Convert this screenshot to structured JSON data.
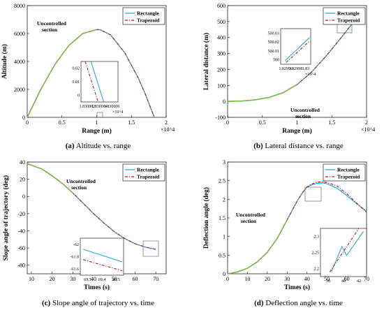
{
  "legend": {
    "rectangle": "Rectangle",
    "trapezoid": "Trapezoid"
  },
  "colors": {
    "rectangle": "#2aa7e2",
    "trapezoid": "#a81b2e",
    "uncontrolled": "#7ab648",
    "axes": "#000000"
  },
  "annotation": {
    "uncontrolled_line1": "Uncontrolled",
    "uncontrolled_line2": "section"
  },
  "captions": {
    "a": {
      "letter": "(a)",
      "text": " Altitude vs. range"
    },
    "b": {
      "letter": "(b)",
      "text": " Lateral distance vs. range"
    },
    "c": {
      "letter": "(c)",
      "text": " Slope angle of trajectory vs. time"
    },
    "d": {
      "letter": "(d)",
      "text": " Deflection angle vs. time"
    }
  },
  "chart_data": [
    {
      "id": "a",
      "type": "line",
      "xlabel": "Range (m)",
      "ylabel": "Altitude (m)",
      "xlim": [
        0,
        20000
      ],
      "ylim": [
        0,
        8000
      ],
      "xticks": [
        "0",
        "0.5",
        "1",
        "1.5",
        "2"
      ],
      "yticks": [
        "0",
        "2000",
        "4000",
        "6000",
        "8000"
      ],
      "x_multiplier": "×10^4",
      "legend_position": "top-right",
      "series": [
        {
          "name": "Rectangle",
          "x": [
            0,
            2000,
            4000,
            6000,
            8000,
            10000,
            10500,
            12000,
            14000,
            16000,
            17000,
            18000,
            18300
          ],
          "y": [
            0,
            2050,
            3800,
            5150,
            6000,
            6280,
            6270,
            5900,
            4650,
            2800,
            1650,
            380,
            0
          ]
        },
        {
          "name": "Trapezoid",
          "x": [
            0,
            2000,
            4000,
            6000,
            8000,
            10000,
            10500,
            12000,
            14000,
            16000,
            17000,
            18000,
            18300
          ],
          "y": [
            0,
            2050,
            3800,
            5150,
            6000,
            6280,
            6270,
            5900,
            4650,
            2800,
            1650,
            380,
            0
          ]
        }
      ],
      "inset": {
        "xticks": [
          "1.830002",
          "1.830004",
          "1.830006"
        ],
        "yticks": [
          "0",
          "0.01",
          "0.02"
        ],
        "x_multiplier": "×10^4",
        "xlim": [
          18300.018,
          18300.07
        ],
        "ylim": [
          0,
          0.028
        ],
        "series": [
          {
            "name": "Rectangle",
            "x": [
              18300.032,
              18300.05
            ],
            "y": [
              0.028,
              0
            ]
          },
          {
            "name": "Trapezoid",
            "x": [
              18300.024,
              18300.042
            ],
            "y": [
              0.028,
              0
            ]
          }
        ]
      }
    },
    {
      "id": "b",
      "type": "line",
      "xlabel": "Range (m)",
      "ylabel": "Lateral distance (m)",
      "xlim": [
        0,
        20000
      ],
      "ylim": [
        -100,
        600
      ],
      "xticks": [
        "0",
        "0.5",
        "1",
        "1.5",
        "2"
      ],
      "yticks": [
        "-100",
        "0",
        "100",
        "200",
        "300",
        "400",
        "500",
        "600"
      ],
      "x_multiplier": "×10^4",
      "legend_position": "top-right",
      "series": [
        {
          "name": "Rectangle",
          "x": [
            0,
            2000,
            4000,
            6000,
            8000,
            10000,
            12000,
            14000,
            16000,
            18000
          ],
          "y": [
            0,
            2,
            10,
            25,
            55,
            105,
            180,
            275,
            380,
            490
          ]
        },
        {
          "name": "Trapezoid",
          "x": [
            0,
            2000,
            4000,
            6000,
            8000,
            10000,
            12000,
            14000,
            16000,
            18000
          ],
          "y": [
            0,
            2,
            10,
            25,
            55,
            105,
            180,
            275,
            380,
            490
          ]
        }
      ],
      "inset": {
        "xticks": [
          "1.82996",
          "1.82998",
          "1.83"
        ],
        "yticks": [
          "500",
          "500.01",
          "500.02",
          "500.03"
        ],
        "x_multiplier": "×10^4",
        "xlim": [
          18299.5,
          18300.05
        ],
        "ylim": [
          499.995,
          500.035
        ],
        "series": [
          {
            "name": "Rectangle",
            "x": [
              18299.58,
              18300.03
            ],
            "y": [
              499.999,
              500.025
            ]
          },
          {
            "name": "Trapezoid",
            "x": [
              18299.6,
              18300.03
            ],
            "y": [
              499.997,
              500.021
            ]
          }
        ]
      }
    },
    {
      "id": "c",
      "type": "line",
      "xlabel": "Times (s)",
      "ylabel": "Slope angle of trajectory (deg)",
      "xlim": [
        8,
        75
      ],
      "ylim": [
        -90,
        40
      ],
      "xticks": [
        "10",
        "20",
        "30",
        "40",
        "50",
        "60",
        "70"
      ],
      "yticks": [
        "-80",
        "-60",
        "-40",
        "-20",
        "0",
        "20",
        "40"
      ],
      "legend_position": "top-right",
      "series": [
        {
          "name": "Rectangle",
          "x": [
            8,
            15,
            20,
            25,
            30,
            35,
            40,
            45,
            50,
            55,
            60,
            65,
            70
          ],
          "y": [
            38,
            32,
            24,
            15,
            4,
            -8,
            -20,
            -31,
            -41,
            -49,
            -55,
            -59,
            -61.5
          ]
        },
        {
          "name": "Trapezoid",
          "x": [
            8,
            15,
            20,
            25,
            30,
            35,
            40,
            45,
            50,
            55,
            60,
            65,
            70
          ],
          "y": [
            38,
            32,
            24,
            15,
            4,
            -8,
            -20,
            -31,
            -41,
            -49,
            -55,
            -59,
            -61.6
          ]
        }
      ],
      "inset": {
        "xticks": [
          "69.3",
          "69.4",
          "69.5"
        ],
        "yticks": [
          "-61.6",
          "-61.8",
          "-62"
        ],
        "xlim": [
          69.28,
          69.58
        ],
        "ylim": [
          -62.05,
          -61.55
        ],
        "series": [
          {
            "name": "Rectangle",
            "x": [
              69.3,
              69.57
            ],
            "y": [
              -61.7,
              -61.87
            ]
          },
          {
            "name": "Trapezoid",
            "x": [
              69.3,
              69.57
            ],
            "y": [
              -61.84,
              -61.99
            ]
          }
        ]
      }
    },
    {
      "id": "d",
      "type": "line",
      "xlabel": "Times (s)",
      "ylabel": "Deflection angle (deg)",
      "xlim": [
        0,
        70
      ],
      "ylim": [
        0,
        3
      ],
      "xticks": [
        "0",
        "10",
        "20",
        "30",
        "40",
        "50",
        "60",
        "70"
      ],
      "yticks": [
        "0",
        "0.5",
        "1",
        "1.5",
        "2",
        "2.5",
        "3"
      ],
      "legend_position": "top-right",
      "series": [
        {
          "name": "Rectangle",
          "x": [
            0,
            5,
            10,
            15,
            20,
            25,
            30,
            35,
            38,
            40,
            42,
            45,
            48,
            50,
            55,
            60,
            65,
            70
          ],
          "y": [
            0,
            0.05,
            0.15,
            0.32,
            0.58,
            0.95,
            1.45,
            1.95,
            2.2,
            2.32,
            2.38,
            2.43,
            2.44,
            2.42,
            2.3,
            2.1,
            1.88,
            1.68
          ]
        },
        {
          "name": "Trapezoid",
          "x": [
            0,
            5,
            10,
            15,
            20,
            25,
            30,
            35,
            38,
            40,
            42,
            45,
            48,
            50,
            55,
            60,
            65,
            70
          ],
          "y": [
            0,
            0.05,
            0.15,
            0.32,
            0.58,
            0.95,
            1.45,
            1.95,
            2.2,
            2.33,
            2.4,
            2.46,
            2.47,
            2.45,
            2.36,
            2.15,
            1.9,
            1.65
          ]
        }
      ],
      "inset": {
        "xticks": [
          "38",
          "40",
          "42"
        ],
        "yticks": [
          "2.2",
          "2.25",
          "2.3"
        ],
        "xlim": [
          37,
          43
        ],
        "ylim": [
          2.18,
          2.34
        ],
        "series": [
          {
            "name": "Rectangle",
            "x": [
              38.4,
              39.8,
              40.4,
              42.6
            ],
            "y": [
              2.195,
              2.28,
              2.25,
              2.33
            ]
          },
          {
            "name": "Trapezoid",
            "x": [
              38.2,
              42
            ],
            "y": [
              2.195,
              2.34
            ]
          }
        ]
      }
    }
  ]
}
